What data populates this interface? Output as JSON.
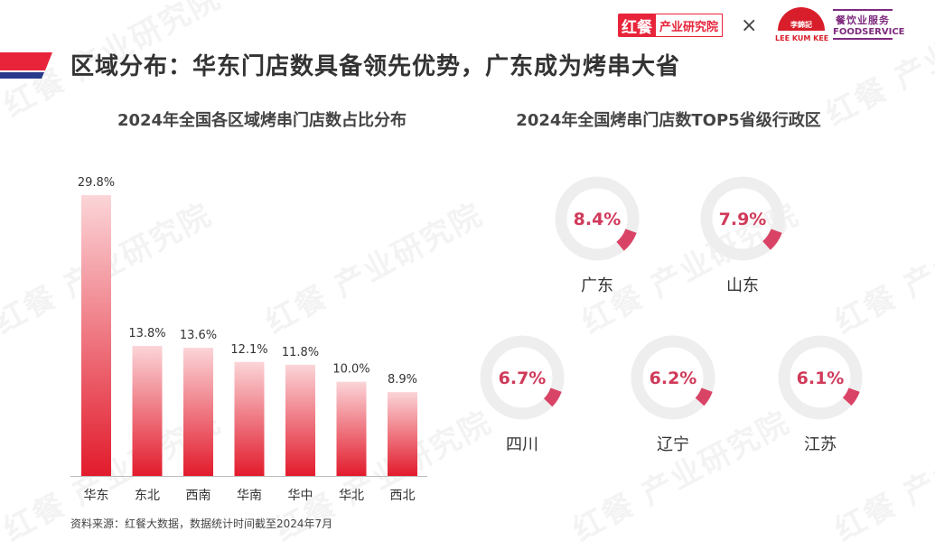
{
  "header": {
    "title": "区域分布：华东门店数具备领先优势，广东成为烤串大省",
    "logo_hongcan_mark": "红餐",
    "logo_hongcan_text": "产业研究院",
    "times_symbol": "×",
    "logo_lkk_cn": "李錦記",
    "logo_lkk_en": "LEE KUM KEE",
    "logo_fs_cn": "餐饮业服务",
    "logo_fs_en": "FOODSERVICE"
  },
  "watermark_text": "红餐 产业研究院",
  "colors": {
    "accent_red": "#e8243a",
    "bar_top": "#fbd5d8",
    "bar_bottom": "#e21b2c",
    "ring_track": "#eeeeee",
    "ring_value": "#d94466",
    "ring_label": "#d03a5a"
  },
  "source_note": "资料来源：红餐大数据，数据统计时间截至2024年7月",
  "chart_data": [
    {
      "type": "bar",
      "title": "2024年全国各区域烤串门店数占比分布",
      "categories": [
        "华东",
        "东北",
        "西南",
        "华南",
        "华中",
        "华北",
        "西北"
      ],
      "values": [
        29.8,
        13.8,
        13.6,
        12.1,
        11.8,
        10.0,
        8.9
      ],
      "value_labels": [
        "29.8%",
        "13.8%",
        "13.6%",
        "12.1%",
        "11.8%",
        "10.0%",
        "8.9%"
      ],
      "ylim": [
        0,
        30
      ],
      "grid": false,
      "legend": "none"
    },
    {
      "type": "pie",
      "title": "2024年全国烤串门店数TOP5省级行政区",
      "categories": [
        "广东",
        "山东",
        "四川",
        "辽宁",
        "江苏"
      ],
      "values": [
        8.4,
        7.9,
        6.7,
        6.2,
        6.1
      ],
      "value_labels": [
        "8.4%",
        "7.9%",
        "6.7%",
        "6.2%",
        "6.1%"
      ],
      "grid": false,
      "legend": "none"
    }
  ]
}
